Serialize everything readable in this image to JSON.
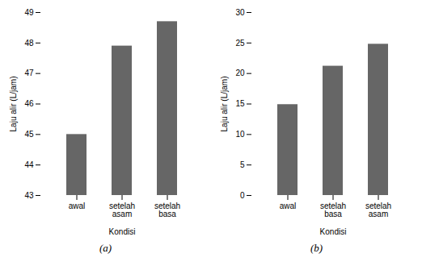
{
  "chart_data": [
    {
      "type": "bar",
      "categories": [
        "awal",
        "setelah\nasam",
        "setelah\nbasa"
      ],
      "values": [
        45,
        47.9,
        48.7
      ],
      "color": "#666666",
      "ylim": [
        43,
        49
      ],
      "yticks": [
        43,
        44,
        45,
        46,
        47,
        48,
        49
      ],
      "ylabel": "Laju alir (L/jam)",
      "xlabel": "Kondisi",
      "caption": "(a)",
      "grid": false
    },
    {
      "type": "bar",
      "categories": [
        "awal",
        "setelah\nbasa",
        "setelah\nasam"
      ],
      "values": [
        14.9,
        21.2,
        24.8
      ],
      "color": "#666666",
      "ylim": [
        0,
        30
      ],
      "yticks": [
        0,
        5,
        10,
        15,
        20,
        25,
        30
      ],
      "ylabel": "Laju alir (L/jam)",
      "xlabel": "Kondisi",
      "caption": "(b)",
      "grid": false
    }
  ]
}
